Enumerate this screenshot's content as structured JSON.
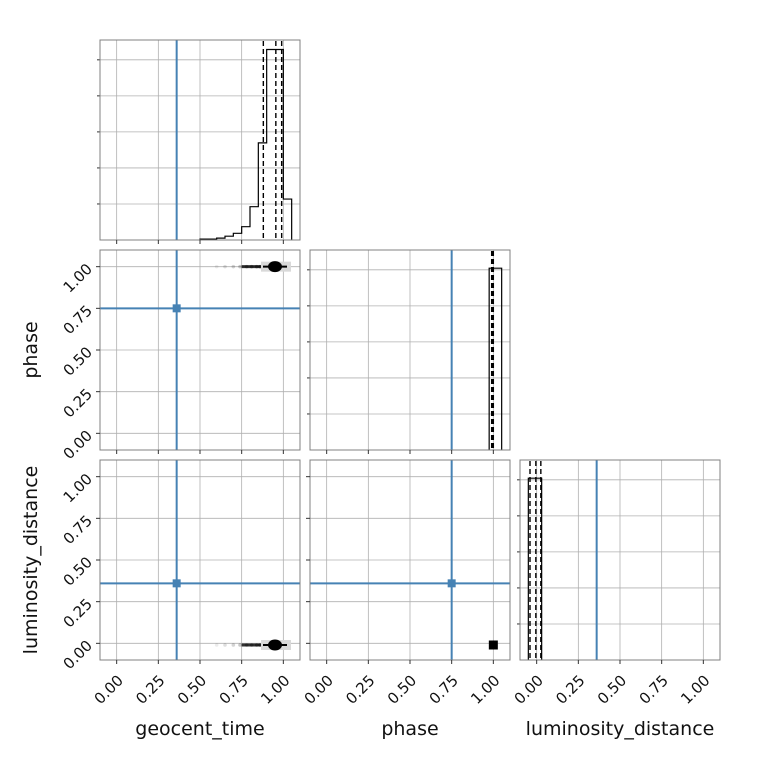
{
  "chart_data": {
    "type": "corner",
    "parameters": [
      "geocent_time",
      "phase",
      "luminosity_distance"
    ],
    "axis_range": [
      -0.1,
      1.1
    ],
    "ticks": [
      0.0,
      0.25,
      0.5,
      0.75,
      1.0
    ],
    "tick_labels": [
      "0.00",
      "0.25",
      "0.50",
      "0.75",
      "1.00"
    ],
    "grid": true,
    "colors": {
      "truth": "#4682b4",
      "histogram": "#000000",
      "grid": "#b0b0b0",
      "frame": "#808080",
      "quantile": "#000000"
    },
    "truths": {
      "geocent_time": 0.36,
      "phase": 0.75,
      "luminosity_distance": 0.36
    },
    "histograms": {
      "geocent_time": {
        "edges": [
          0.5,
          0.55,
          0.6,
          0.65,
          0.7,
          0.75,
          0.8,
          0.85,
          0.9,
          0.95,
          1.0,
          1.05
        ],
        "counts": [
          1,
          1,
          2,
          4,
          7,
          14,
          35,
          102,
          200,
          200,
          43
        ],
        "ylim": [
          0,
          210
        ],
        "quantiles": [
          0.88,
          0.955,
          0.99
        ]
      },
      "phase": {
        "edges": [
          0.975,
          1.0,
          1.05
        ],
        "counts": [
          1.0,
          1.0
        ],
        "ylim": [
          0,
          1.1
        ],
        "quantiles": [
          0.99,
          0.995,
          1.0
        ]
      },
      "luminosity_distance": {
        "edges": [
          -0.05,
          0.0,
          0.03
        ],
        "counts": [
          1.0,
          1.0
        ],
        "ylim": [
          0,
          1.1
        ],
        "quantiles": [
          -0.04,
          -0.005,
          0.025
        ]
      }
    },
    "samples_2d": {
      "phase_vs_geocent_time": {
        "x": [
          0.6,
          0.65,
          0.7,
          0.74,
          0.78,
          0.81,
          0.84,
          0.86,
          0.88,
          0.9,
          0.91,
          0.92,
          0.93,
          0.94,
          0.95,
          0.96,
          0.97,
          0.98,
          0.99,
          1.0
        ],
        "y": 1.0,
        "peak": {
          "x": 0.95,
          "y": 1.0
        }
      },
      "luminosity_distance_vs_geocent_time": {
        "x": [
          0.6,
          0.65,
          0.7,
          0.74,
          0.78,
          0.81,
          0.84,
          0.86,
          0.88,
          0.9,
          0.91,
          0.92,
          0.93,
          0.94,
          0.95,
          0.96,
          0.97,
          0.98,
          0.99,
          1.0
        ],
        "y": -0.01,
        "peak": {
          "x": 0.95,
          "y": -0.01
        }
      },
      "luminosity_distance_vs_phase": {
        "peak": {
          "x": 1.0,
          "y": -0.01
        }
      }
    }
  }
}
